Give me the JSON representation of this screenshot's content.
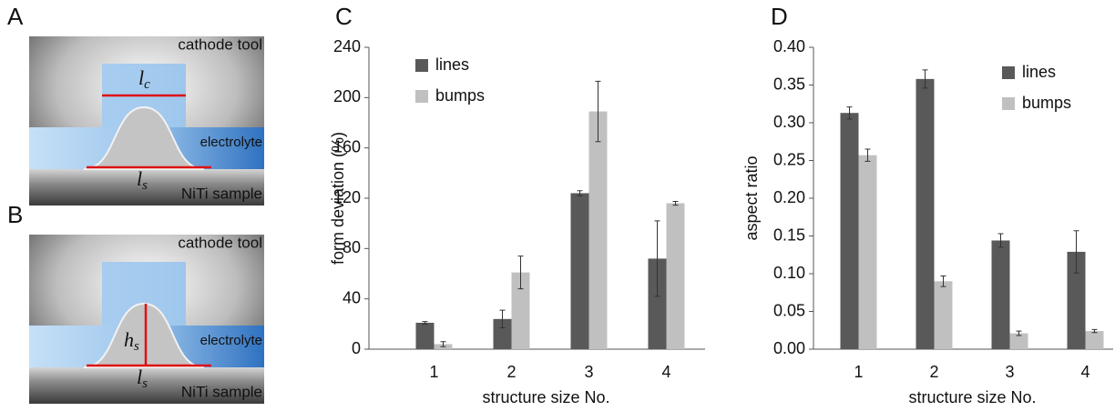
{
  "panels": {
    "A": {
      "label": "A",
      "cathode": "cathode tool",
      "electrolyte": "electrolyte",
      "sample": "NiTi sample",
      "lc": {
        "symbol": "l",
        "subscript": "c"
      },
      "ls": {
        "symbol": "l",
        "subscript": "s"
      }
    },
    "B": {
      "label": "B",
      "cathode": "cathode tool",
      "electrolyte": "electrolyte",
      "sample": "NiTi sample",
      "hs": {
        "symbol": "h",
        "subscript": "s"
      },
      "ls": {
        "symbol": "l",
        "subscript": "s"
      }
    }
  },
  "chart_data": [
    {
      "type": "bar",
      "label": "C",
      "xlabel": "structure size No.",
      "ylabel": "form deviation  (%)",
      "categories": [
        "1",
        "2",
        "3",
        "4"
      ],
      "series": [
        {
          "name": "lines",
          "color": "#595959",
          "values": [
            21,
            24,
            124,
            72
          ],
          "errors": [
            1,
            7,
            2,
            30
          ]
        },
        {
          "name": "bumps",
          "color": "#c0c0c0",
          "values": [
            4,
            61,
            189,
            116
          ],
          "errors": [
            2,
            13,
            24,
            1.5
          ]
        }
      ],
      "ylim": [
        0,
        240
      ],
      "yticks": [
        0,
        40,
        80,
        120,
        160,
        200,
        240
      ],
      "legend": "upper left"
    },
    {
      "type": "bar",
      "label": "D",
      "xlabel": "structure size No.",
      "ylabel": "aspect ratio",
      "categories": [
        "1",
        "2",
        "3",
        "4"
      ],
      "series": [
        {
          "name": "lines",
          "color": "#595959",
          "values": [
            0.313,
            0.358,
            0.144,
            0.129
          ],
          "errors": [
            0.008,
            0.012,
            0.009,
            0.028
          ]
        },
        {
          "name": "bumps",
          "color": "#c0c0c0",
          "values": [
            0.257,
            0.09,
            0.021,
            0.024
          ],
          "errors": [
            0.008,
            0.007,
            0.003,
            0.002
          ]
        }
      ],
      "ylim": [
        0,
        0.4
      ],
      "yticks": [
        {
          "value": 0,
          "label": "0.00"
        },
        0.05,
        {
          "value": 0.1,
          "label": "0.10"
        },
        0.15,
        {
          "value": 0.2,
          "label": "0.20"
        },
        0.25,
        {
          "value": 0.3,
          "label": "0.30"
        },
        0.35,
        {
          "value": 0.4,
          "label": "0.40"
        }
      ],
      "legend": "upper right"
    }
  ]
}
